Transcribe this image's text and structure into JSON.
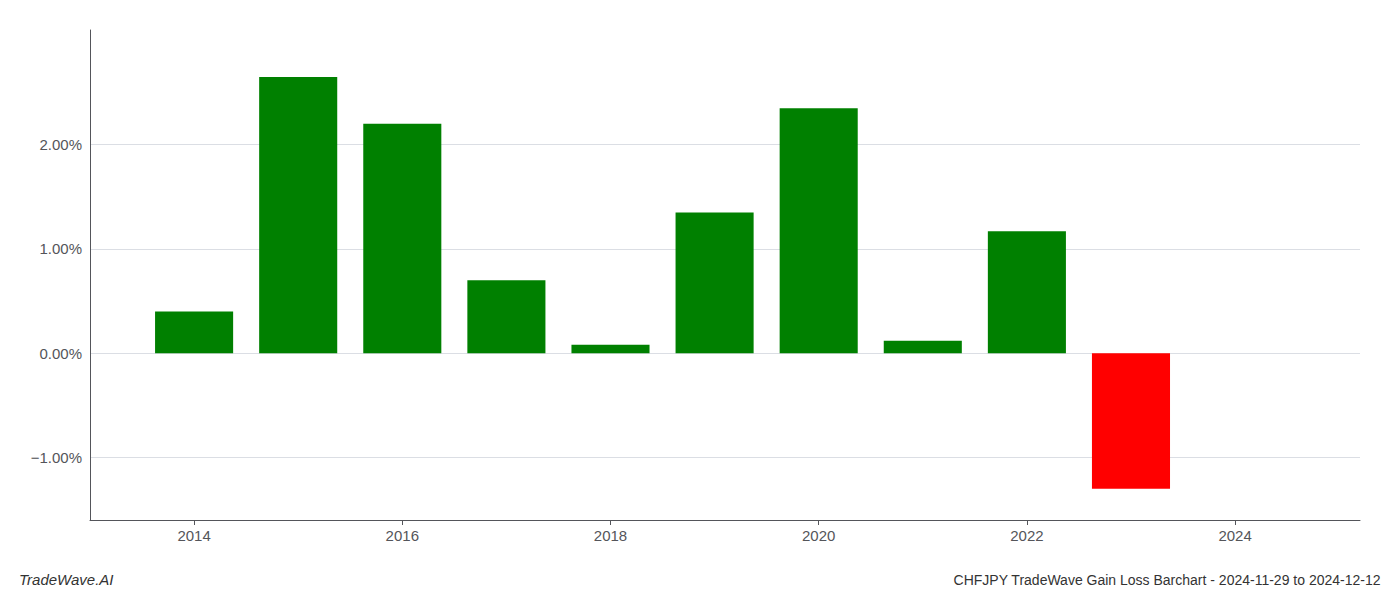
{
  "chart_data": {
    "type": "bar",
    "title": "CHFJPY TradeWave Gain Loss Barchart - 2024-11-29 to 2024-12-12",
    "annotations": [
      "TradeWave.AI"
    ],
    "x": [
      2014,
      2015,
      2016,
      2017,
      2018,
      2019,
      2020,
      2021,
      2022,
      2023
    ],
    "values": [
      0.4,
      2.65,
      2.2,
      0.7,
      0.08,
      1.35,
      2.35,
      0.12,
      1.17,
      -1.3
    ],
    "colors": [
      "#008000",
      "#008000",
      "#008000",
      "#008000",
      "#008000",
      "#008000",
      "#008000",
      "#008000",
      "#008000",
      "#ff0000"
    ],
    "xlim": [
      2013.0,
      2025.2
    ],
    "xticks": [
      2014,
      2016,
      2018,
      2020,
      2022,
      2024
    ],
    "ylim": [
      -1.6,
      3.1
    ],
    "yticks": [
      {
        "value": -1.0,
        "label": "−1.00%"
      },
      {
        "value": 0.0,
        "label": "0.00%"
      },
      {
        "value": 1.0,
        "label": "1.00%"
      },
      {
        "value": 2.0,
        "label": "2.00%"
      }
    ],
    "grid": true
  }
}
